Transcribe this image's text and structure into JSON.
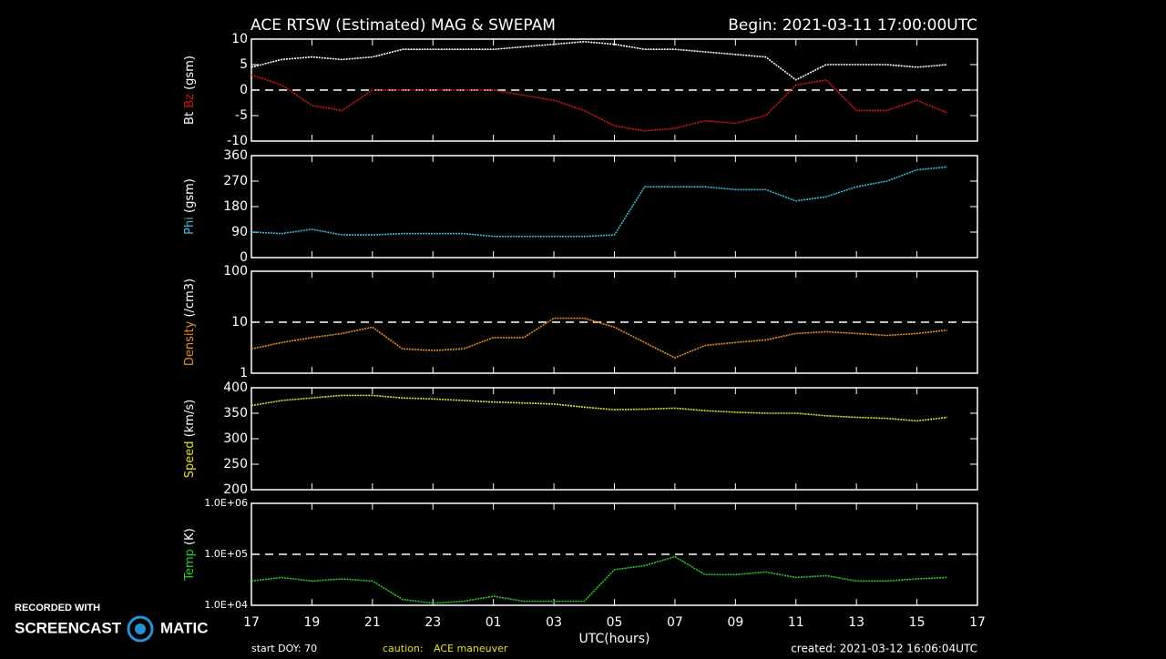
{
  "header": {
    "title": "ACE RTSW (Estimated) MAG & SWEPAM",
    "begin": "Begin: 2021-03-11 17:00:00UTC"
  },
  "footer": {
    "doy": "start DOY:  70",
    "caution": "caution:",
    "caution_text": "ACE maneuver",
    "created": "created: 2021-03-12 16:06:04UTC"
  },
  "watermark": {
    "top": "RECORDED WITH",
    "left": "SCREENCAST",
    "right": "MATIC"
  },
  "chart_data": [
    {
      "type": "line",
      "ylabel": "(gsm)",
      "ylim": [
        -10,
        10
      ],
      "yticks": [
        -10,
        -5,
        0,
        5,
        10
      ],
      "hlines": [
        0
      ],
      "x": [
        0,
        1,
        2,
        3,
        4,
        5,
        6,
        7,
        8,
        9,
        10,
        11,
        12,
        13,
        14,
        15,
        16,
        17,
        18,
        19,
        20,
        21,
        22,
        23
      ],
      "series": [
        {
          "name": "Bt",
          "color": "#ffffff",
          "values": [
            4.5,
            6,
            6.5,
            6,
            6.5,
            8,
            8,
            8,
            8,
            8.5,
            9,
            9.5,
            9,
            8,
            8,
            7.5,
            7,
            6.5,
            2,
            5,
            5,
            5,
            4.5,
            5
          ]
        },
        {
          "name": "Bz",
          "color": "#d01818",
          "values": [
            3,
            1,
            -3,
            -4,
            0,
            0,
            0,
            0,
            0,
            -1,
            -2,
            -4,
            -7,
            -8,
            -7.5,
            -6,
            -6.5,
            -5,
            1,
            2,
            -4,
            -4,
            -2,
            -4.5
          ]
        }
      ]
    },
    {
      "type": "line",
      "ylabel": "(gsm)",
      "ylim": [
        0,
        360
      ],
      "yticks": [
        0,
        90,
        180,
        270,
        360
      ],
      "x": [
        0,
        1,
        2,
        3,
        4,
        5,
        6,
        7,
        8,
        9,
        10,
        11,
        12,
        13,
        14,
        15,
        16,
        17,
        18,
        19,
        20,
        21,
        22,
        23
      ],
      "series": [
        {
          "name": "Phi",
          "color": "#3cb8d8",
          "values": [
            90,
            85,
            100,
            80,
            80,
            85,
            85,
            85,
            75,
            75,
            75,
            75,
            80,
            250,
            250,
            250,
            240,
            240,
            200,
            215,
            250,
            270,
            310,
            320
          ]
        }
      ]
    },
    {
      "type": "line",
      "ylabel": "(/cm3)",
      "log": true,
      "ylim": [
        1,
        100
      ],
      "yticks": [
        1,
        10,
        100
      ],
      "hlines": [
        10
      ],
      "x": [
        0,
        1,
        2,
        3,
        4,
        5,
        6,
        7,
        8,
        9,
        10,
        11,
        12,
        13,
        14,
        15,
        16,
        17,
        18,
        19,
        20,
        21,
        22,
        23
      ],
      "series": [
        {
          "name": "Density",
          "color": "#e88a2c",
          "values": [
            3,
            4,
            5,
            6,
            8,
            3,
            2.8,
            3,
            5,
            5,
            12,
            12,
            8,
            4,
            2,
            3.5,
            4,
            4.5,
            6,
            6.5,
            6,
            5.5,
            6,
            7
          ]
        }
      ]
    },
    {
      "type": "line",
      "ylabel": "(km/s)",
      "ylim": [
        200,
        400
      ],
      "yticks": [
        200,
        250,
        300,
        350,
        400
      ],
      "x": [
        0,
        1,
        2,
        3,
        4,
        5,
        6,
        7,
        8,
        9,
        10,
        11,
        12,
        13,
        14,
        15,
        16,
        17,
        18,
        19,
        20,
        21,
        22,
        23
      ],
      "series": [
        {
          "name": "Speed",
          "color": "#e0e030",
          "values": [
            365,
            375,
            380,
            385,
            385,
            380,
            378,
            375,
            372,
            370,
            368,
            362,
            357,
            358,
            360,
            355,
            352,
            350,
            350,
            345,
            342,
            340,
            335,
            342
          ]
        }
      ]
    },
    {
      "type": "line",
      "ylabel": "(K)",
      "log": true,
      "ylim": [
        10000,
        1000000
      ],
      "yticks": [
        {
          "value": 10000,
          "label": "1.0E+04"
        },
        {
          "value": 100000,
          "label": "1.0E+05"
        },
        {
          "value": 1000000,
          "label": "1.0E+06"
        }
      ],
      "hlines": [
        100000
      ],
      "xlabel": "UTC(hours)",
      "xlim": [
        0,
        24
      ],
      "xticks": [
        {
          "value": 0,
          "label": "17"
        },
        {
          "value": 2,
          "label": "19"
        },
        {
          "value": 4,
          "label": "21"
        },
        {
          "value": 6,
          "label": "23"
        },
        {
          "value": 8,
          "label": "01"
        },
        {
          "value": 10,
          "label": "03"
        },
        {
          "value": 12,
          "label": "05"
        },
        {
          "value": 14,
          "label": "07"
        },
        {
          "value": 16,
          "label": "09"
        },
        {
          "value": 18,
          "label": "11"
        },
        {
          "value": 20,
          "label": "13"
        },
        {
          "value": 22,
          "label": "15"
        },
        {
          "value": 24,
          "label": "17"
        }
      ],
      "x": [
        0,
        1,
        2,
        3,
        4,
        5,
        6,
        7,
        8,
        9,
        10,
        11,
        12,
        13,
        14,
        15,
        16,
        17,
        18,
        19,
        20,
        21,
        22,
        23
      ],
      "series": [
        {
          "name": "Temp",
          "color": "#30c830",
          "values": [
            30000,
            35000,
            30000,
            33000,
            30000,
            13000,
            11000,
            12000,
            15000,
            12000,
            12000,
            12000,
            50000,
            60000,
            90000,
            40000,
            40000,
            45000,
            35000,
            38000,
            30000,
            30000,
            33000,
            35000
          ]
        }
      ]
    }
  ]
}
